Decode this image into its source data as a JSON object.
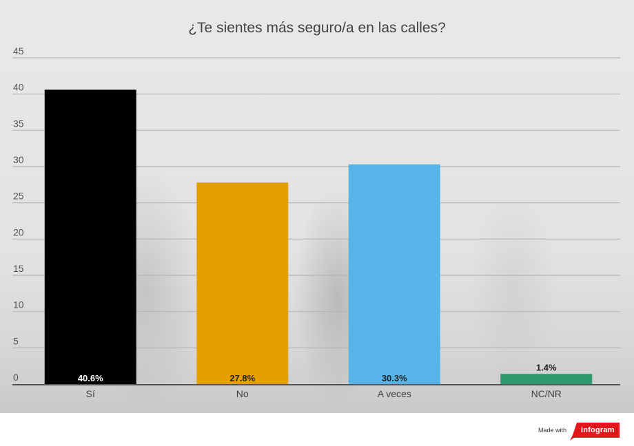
{
  "chart_data": {
    "type": "bar",
    "title": "¿Te sientes más seguro/a en las calles?",
    "categories": [
      "Sí",
      "No",
      "A veces",
      "NC/NR"
    ],
    "values": [
      40.6,
      27.8,
      30.3,
      1.4
    ],
    "value_labels": [
      "40.6%",
      "27.8%",
      "30.3%",
      "1.4%"
    ],
    "colors": [
      "#000000",
      "#e5a000",
      "#58b4e8",
      "#2e9a6e"
    ],
    "value_label_colors": [
      "#ffffff",
      "#222222",
      "#222222",
      "#222222"
    ],
    "ylim": [
      0,
      45
    ],
    "yticks": [
      0,
      5,
      10,
      15,
      20,
      25,
      30,
      35,
      40,
      45
    ],
    "grid": true,
    "xlabel": "",
    "ylabel": ""
  },
  "footer": {
    "made_with": "Made with",
    "brand": "infogram",
    "brand_color": "#e0181b"
  }
}
